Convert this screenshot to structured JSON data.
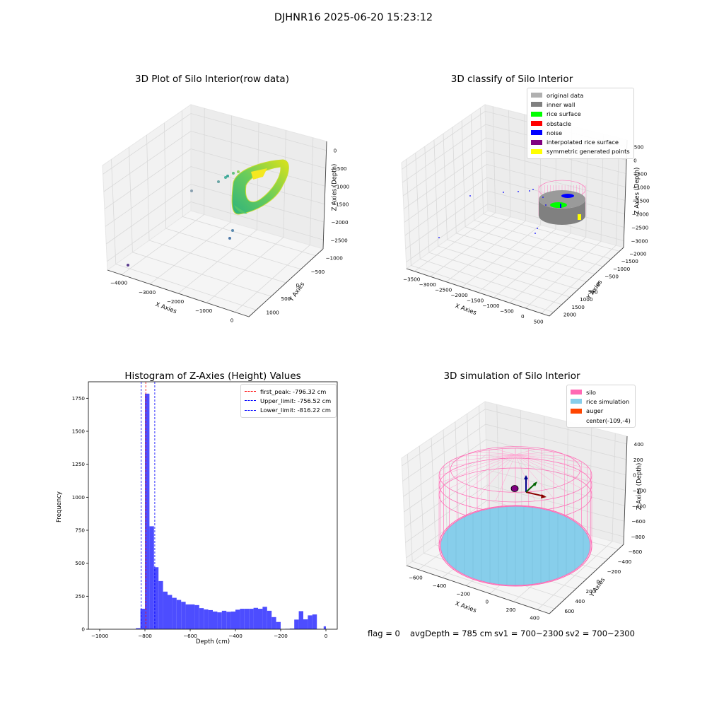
{
  "figure": {
    "suptitle": "DJHNR16 2025-06-20 15:23:12",
    "footer": {
      "flag": "flag = 0",
      "avg_depth": "avgDepth = 785 cm",
      "sv1": "sv1 = 700~2300",
      "sv2": "sv2 = 700~2300"
    }
  },
  "colors": {
    "grey": "#b0b0b0",
    "darkgrey": "#808080",
    "lime": "#00ff00",
    "red": "#ff0000",
    "blue": "#0000ff",
    "purple": "#800080",
    "yellow": "#ffff00",
    "silo": "#ff69b4",
    "rice": "#87ceeb",
    "auger": "#ff4500",
    "hist": "#4d4dff"
  },
  "chart_data": [
    {
      "type": "scatter",
      "subtype": "3d",
      "title": "3D Plot of Silo Interior(row data)",
      "xlabel": "X Axies",
      "ylabel": "Y Axies",
      "zlabel": "Z Axies (Depth)",
      "x_ticks": [
        "−4000",
        "−3000",
        "−2000",
        "−1000",
        "0"
      ],
      "y_ticks": [
        "1000",
        "500",
        "0",
        "−500",
        "−1000"
      ],
      "z_ticks": [
        "0",
        "−500",
        "−1000",
        "−1500",
        "−2000",
        "−2500"
      ],
      "xlim": [
        -4200,
        500
      ],
      "ylim": [
        -1200,
        1200
      ],
      "zlim": [
        -2900,
        100
      ],
      "colormap": "viridis",
      "grid": true
    },
    {
      "type": "scatter",
      "subtype": "3d",
      "title": "3D classify of Silo Interior",
      "xlabel": "X Axies",
      "ylabel": "Y Axies",
      "zlabel": "Z Axies (Depth)",
      "x_ticks": [
        "−3500",
        "−3000",
        "−2500",
        "−2000",
        "−1500",
        "−1000",
        "−500",
        "0",
        "500"
      ],
      "y_ticks": [
        "2000",
        "1500",
        "1000",
        "500",
        "0",
        "−500",
        "−1000",
        "−1500",
        "−2000"
      ],
      "z_ticks": [
        "500",
        "0",
        "−500",
        "−1000",
        "−1500",
        "−2000",
        "−2500",
        "−3000"
      ],
      "xlim": [
        -3700,
        600
      ],
      "ylim": [
        -2100,
        2100
      ],
      "zlim": [
        -3200,
        600
      ],
      "legend_position": "top-right",
      "legend": [
        {
          "label": "original data",
          "color": "#b0b0b0"
        },
        {
          "label": "inner wall",
          "color": "#808080"
        },
        {
          "label": "rice surface",
          "color": "#00ff00"
        },
        {
          "label": "obstacle",
          "color": "#ff0000"
        },
        {
          "label": "noise",
          "color": "#0000ff"
        },
        {
          "label": "interpolated rice surface",
          "color": "#800080"
        },
        {
          "label": "symmetric generated points",
          "color": "#ffff00"
        }
      ],
      "grid": true
    },
    {
      "type": "bar",
      "subtype": "histogram",
      "title": "Histogram of Z-Axies (Height) Values",
      "xlabel": "Depth (cm)",
      "ylabel": "Frequency",
      "xlim": [
        -1050,
        50
      ],
      "ylim": [
        0,
        1875
      ],
      "x_ticks": [
        -1000,
        -800,
        -600,
        -400,
        -200,
        0
      ],
      "y_ticks": [
        0,
        250,
        500,
        750,
        1000,
        1250,
        1500,
        1750
      ],
      "bin_width": 20,
      "bins": [
        {
          "x": -840,
          "v": 8
        },
        {
          "x": -820,
          "v": 155
        },
        {
          "x": -800,
          "v": 1785
        },
        {
          "x": -780,
          "v": 780
        },
        {
          "x": -760,
          "v": 470
        },
        {
          "x": -740,
          "v": 365
        },
        {
          "x": -720,
          "v": 285
        },
        {
          "x": -700,
          "v": 260
        },
        {
          "x": -680,
          "v": 238
        },
        {
          "x": -660,
          "v": 222
        },
        {
          "x": -640,
          "v": 208
        },
        {
          "x": -620,
          "v": 188
        },
        {
          "x": -600,
          "v": 188
        },
        {
          "x": -580,
          "v": 183
        },
        {
          "x": -560,
          "v": 160
        },
        {
          "x": -540,
          "v": 150
        },
        {
          "x": -520,
          "v": 145
        },
        {
          "x": -500,
          "v": 134
        },
        {
          "x": -480,
          "v": 128
        },
        {
          "x": -460,
          "v": 140
        },
        {
          "x": -440,
          "v": 132
        },
        {
          "x": -420,
          "v": 134
        },
        {
          "x": -400,
          "v": 148
        },
        {
          "x": -380,
          "v": 155
        },
        {
          "x": -360,
          "v": 155
        },
        {
          "x": -340,
          "v": 155
        },
        {
          "x": -320,
          "v": 162
        },
        {
          "x": -300,
          "v": 155
        },
        {
          "x": -280,
          "v": 170
        },
        {
          "x": -260,
          "v": 140
        },
        {
          "x": -240,
          "v": 92
        },
        {
          "x": -220,
          "v": 55
        },
        {
          "x": -200,
          "v": 0
        },
        {
          "x": -180,
          "v": 3
        },
        {
          "x": -160,
          "v": 5
        },
        {
          "x": -140,
          "v": 73
        },
        {
          "x": -120,
          "v": 137
        },
        {
          "x": -100,
          "v": 75
        },
        {
          "x": -80,
          "v": 105
        },
        {
          "x": -60,
          "v": 112
        },
        {
          "x": -40,
          "v": 3
        },
        {
          "x": -20,
          "v": 0
        },
        {
          "x": -10,
          "v": 22
        }
      ],
      "lines": [
        {
          "label": "first_peak: -796.32 cm",
          "x": -796.32,
          "color": "#ff0000"
        },
        {
          "label": "Upper_limit: -756.52 cm",
          "x": -756.52,
          "color": "#0000ff"
        },
        {
          "label": "Lower_limit: -816.22 cm",
          "x": -816.22,
          "color": "#0000ff"
        }
      ],
      "legend_position": "top-right"
    },
    {
      "type": "scatter",
      "subtype": "3d-surface",
      "title": "3D simulation of Silo Interior",
      "xlabel": "X Axies",
      "ylabel": "Y Axies",
      "zlabel": "Z Axies (Depth)",
      "x_ticks": [
        "−600",
        "−400",
        "−200",
        "0",
        "200",
        "400"
      ],
      "y_ticks": [
        "600",
        "400",
        "200",
        "0",
        "−200",
        "−400",
        "−600"
      ],
      "z_ticks": [
        "400",
        "200",
        "0",
        "−200",
        "−400",
        "−600",
        "−800"
      ],
      "xlim": [
        -700,
        500
      ],
      "ylim": [
        -700,
        700
      ],
      "zlim": [
        -900,
        500
      ],
      "legend_position": "top-right",
      "legend": [
        {
          "label": "silo",
          "color": "#ff69b4"
        },
        {
          "label": "rice simulation",
          "color": "#87ceeb"
        },
        {
          "label": "auger",
          "color": "#ff4500"
        },
        {
          "label": "center(-109,-4)",
          "color": ""
        }
      ],
      "grid": true
    }
  ]
}
